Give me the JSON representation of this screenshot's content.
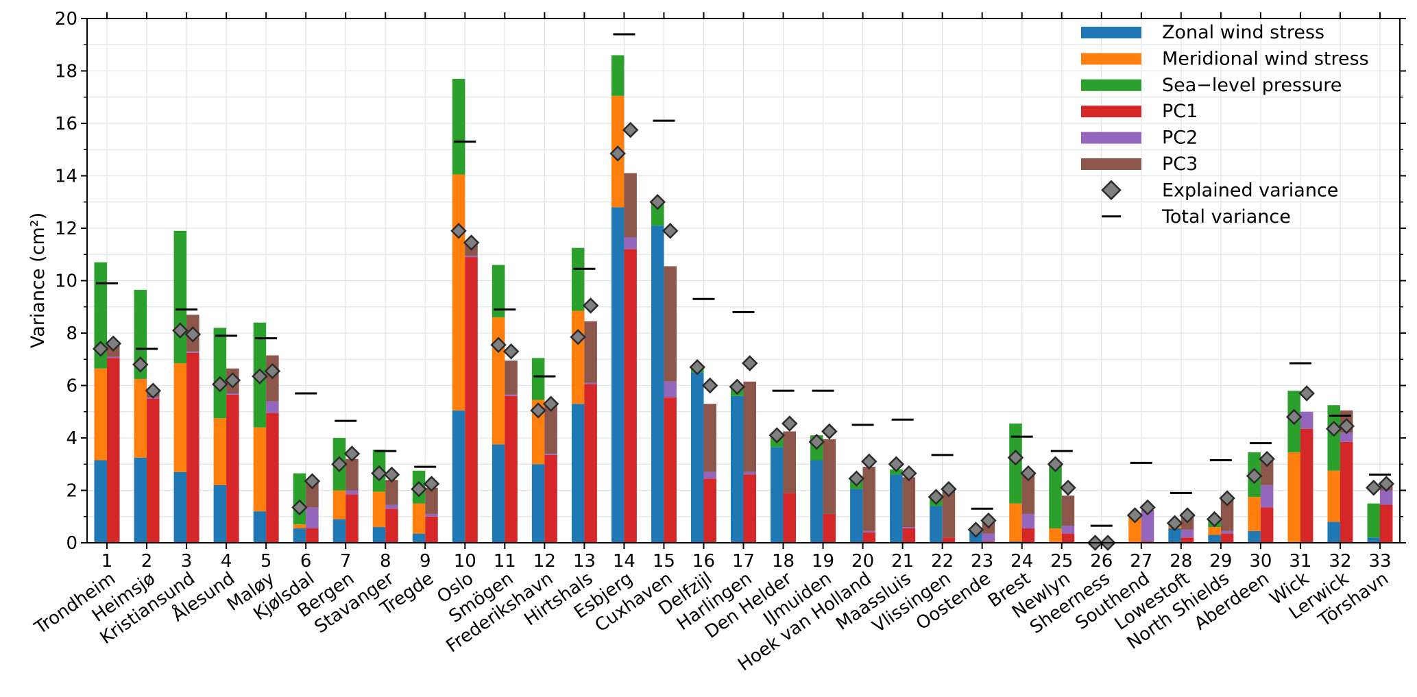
{
  "chart_data": {
    "type": "bar",
    "ylabel": "Variance (cm²)",
    "ylim": [
      0,
      20
    ],
    "y_ticks": [
      "0",
      "2",
      "4",
      "6",
      "8",
      "10",
      "12",
      "14",
      "16",
      "18",
      "20"
    ],
    "grid": true,
    "legend_position": "top-right",
    "categories": [
      "1",
      "2",
      "3",
      "4",
      "5",
      "6",
      "7",
      "8",
      "9",
      "10",
      "11",
      "12",
      "13",
      "14",
      "15",
      "16",
      "17",
      "18",
      "19",
      "20",
      "21",
      "22",
      "23",
      "24",
      "25",
      "26",
      "27",
      "28",
      "29",
      "30",
      "31",
      "32",
      "33"
    ],
    "stations": [
      "Trondheim",
      "Heimsjø",
      "Kristiansund",
      "Ålesund",
      "Maløy",
      "Kjølsdal",
      "Bergen",
      "Stavanger",
      "Tregde",
      "Oslo",
      "Smögen",
      "Frederikshavn",
      "Hirtshals",
      "Esbjerg",
      "Cuxhaven",
      "Delfzijl",
      "Harlingen",
      "Den Helder",
      "IJmuiden",
      "Hoek van Holland",
      "Maassluis",
      "Vlissingen",
      "Oostende",
      "Brest",
      "Newlyn",
      "Sheerness",
      "Southend",
      "Lowestoft",
      "North Shields",
      "Aberdeen",
      "Wick",
      "Lerwick",
      "Törshavn"
    ],
    "series": [
      {
        "name": "Zonal wind stress",
        "color": "#1f77b4",
        "group": "wind",
        "values": [
          3.15,
          3.25,
          2.7,
          2.2,
          1.2,
          0.55,
          0.9,
          0.6,
          0.35,
          5.05,
          3.75,
          3.0,
          5.3,
          12.8,
          12.1,
          6.5,
          5.6,
          3.65,
          3.15,
          2.05,
          2.6,
          1.4,
          0.4,
          0.05,
          0.0,
          0.0,
          0.0,
          0.55,
          0.3,
          0.45,
          0.0,
          0.8,
          0.2
        ]
      },
      {
        "name": "Meridional wind stress",
        "color": "#ff7f0e",
        "group": "wind",
        "values": [
          3.5,
          3.0,
          4.15,
          2.55,
          3.2,
          0.15,
          1.1,
          1.35,
          1.15,
          9.0,
          4.85,
          2.45,
          3.55,
          4.25,
          0.0,
          0.0,
          0.0,
          0.0,
          0.0,
          0.0,
          0.0,
          0.0,
          0.0,
          1.45,
          0.55,
          0.0,
          1.0,
          0.15,
          0.3,
          1.3,
          3.45,
          1.95,
          0.0
        ]
      },
      {
        "name": "Sea−level pressure",
        "color": "#2ca02c",
        "group": "wind",
        "values": [
          4.05,
          3.4,
          5.05,
          3.45,
          4.0,
          1.95,
          2.0,
          1.6,
          1.25,
          3.65,
          2.0,
          1.6,
          2.4,
          1.55,
          0.85,
          0.2,
          0.4,
          0.55,
          0.95,
          0.5,
          0.2,
          0.4,
          0.1,
          3.05,
          2.45,
          0.0,
          0.0,
          0.0,
          0.3,
          1.7,
          2.35,
          2.5,
          1.3
        ]
      },
      {
        "name": "PC1",
        "color": "#d62728",
        "group": "pc",
        "values": [
          7.05,
          5.5,
          7.25,
          5.65,
          4.95,
          0.55,
          1.85,
          1.3,
          1.0,
          10.9,
          5.6,
          3.35,
          6.05,
          11.2,
          5.55,
          2.45,
          2.6,
          1.9,
          1.1,
          0.4,
          0.55,
          0.2,
          0.05,
          0.55,
          0.35,
          0.0,
          0.05,
          0.2,
          0.35,
          1.35,
          4.35,
          3.85,
          1.45
        ]
      },
      {
        "name": "PC2",
        "color": "#9467bd",
        "group": "pc",
        "values": [
          0.05,
          0.05,
          0.05,
          0.05,
          0.45,
          0.8,
          0.15,
          0.15,
          0.1,
          0.05,
          0.05,
          0.05,
          0.05,
          0.45,
          0.6,
          0.25,
          0.1,
          0.0,
          0.0,
          0.05,
          0.05,
          0.0,
          0.3,
          0.55,
          0.3,
          0.0,
          1.15,
          0.3,
          0.1,
          0.85,
          0.65,
          0.35,
          0.55
        ]
      },
      {
        "name": "PC3",
        "color": "#8c564b",
        "group": "pc",
        "values": [
          0.5,
          0.25,
          1.4,
          0.95,
          1.75,
          1.05,
          1.2,
          0.95,
          1.0,
          0.55,
          1.3,
          1.9,
          2.35,
          2.45,
          4.4,
          2.6,
          3.45,
          2.35,
          2.85,
          2.45,
          1.9,
          1.9,
          0.5,
          1.6,
          1.15,
          0.0,
          0.05,
          0.6,
          1.3,
          1.0,
          0.0,
          0.85,
          0.25
        ]
      },
      {
        "name": "Explained variance",
        "color": "#808080",
        "group": "marker",
        "values_wind": [
          7.4,
          6.8,
          8.1,
          6.05,
          6.35,
          1.35,
          3.0,
          2.65,
          2.05,
          11.9,
          7.55,
          5.05,
          7.85,
          14.85,
          13.0,
          6.7,
          5.95,
          4.1,
          3.85,
          2.45,
          3.0,
          1.75,
          0.5,
          3.25,
          3.0,
          0.0,
          1.05,
          0.75,
          0.9,
          2.55,
          4.8,
          4.35,
          2.1
        ],
        "values_pc": [
          7.6,
          5.8,
          7.95,
          6.2,
          6.55,
          2.35,
          3.4,
          2.6,
          2.25,
          11.45,
          7.3,
          5.3,
          9.05,
          15.75,
          11.9,
          6.0,
          6.85,
          4.55,
          4.25,
          3.1,
          2.65,
          2.05,
          0.85,
          2.65,
          2.1,
          0.0,
          1.35,
          1.05,
          1.7,
          3.2,
          5.7,
          4.45,
          2.25
        ]
      },
      {
        "name": "Total variance",
        "color": "#000000",
        "group": "line",
        "values": [
          9.9,
          7.4,
          8.9,
          7.9,
          7.8,
          5.7,
          4.65,
          3.5,
          2.9,
          15.3,
          8.9,
          6.35,
          10.45,
          19.4,
          16.1,
          9.3,
          8.8,
          5.8,
          5.8,
          4.5,
          4.7,
          3.35,
          1.3,
          4.05,
          3.5,
          0.65,
          3.05,
          1.9,
          3.15,
          3.8,
          6.85,
          4.85,
          2.6
        ]
      }
    ]
  }
}
